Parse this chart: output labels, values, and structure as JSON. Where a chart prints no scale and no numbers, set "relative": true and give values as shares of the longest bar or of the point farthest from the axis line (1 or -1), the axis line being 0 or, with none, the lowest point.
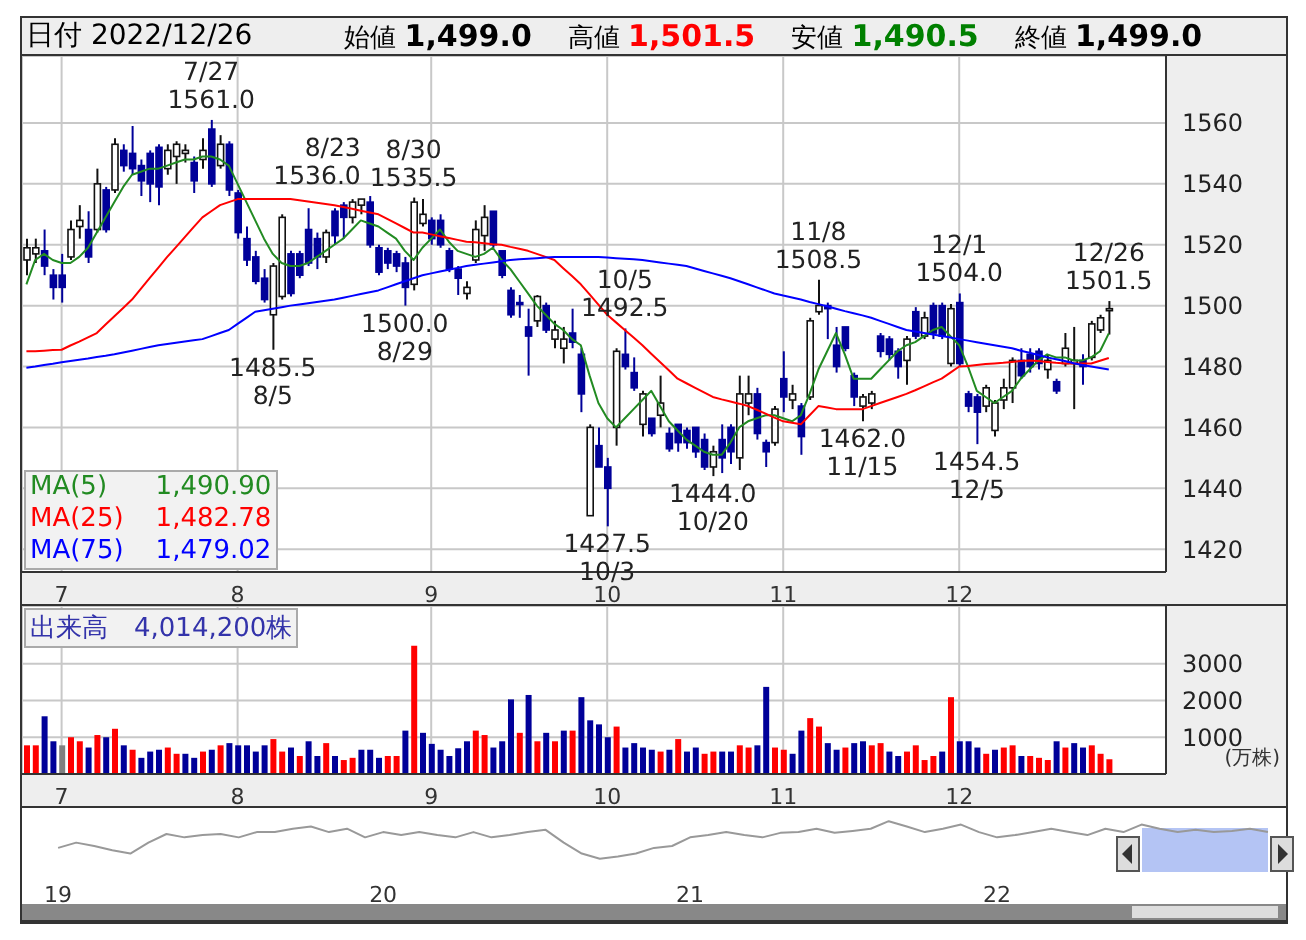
{
  "chart_data": [
    {
      "type": "candlestick",
      "title": "日付 2022/12/26",
      "categories": [
        null,
        null,
        null,
        null,
        "7",
        null,
        null,
        null,
        null,
        null,
        null,
        null,
        null,
        null,
        null,
        null,
        null,
        null,
        null,
        null,
        null,
        null,
        null,
        null,
        "8",
        null,
        null,
        null,
        null,
        null,
        null,
        null,
        null,
        null,
        null,
        null,
        null,
        null,
        null,
        null,
        null,
        null,
        null,
        null,
        null,
        null,
        "9",
        null,
        null,
        null,
        null,
        null,
        null,
        null,
        null,
        null,
        null,
        null,
        null,
        null,
        null,
        null,
        null,
        null,
        null,
        null,
        "10",
        null,
        null,
        null,
        null,
        null,
        null,
        null,
        null,
        null,
        null,
        null,
        null,
        null,
        null,
        null,
        null,
        null,
        null,
        null,
        "11",
        null,
        null,
        null,
        null,
        null,
        null,
        null,
        null,
        null,
        null,
        null,
        null,
        null,
        null,
        null,
        null,
        null,
        null,
        null,
        "12",
        null,
        null,
        null,
        null,
        null,
        null,
        null,
        null,
        null,
        null,
        null,
        null,
        null,
        null,
        null,
        null,
        null
      ],
      "ohlc": [
        [
          1515,
          1522,
          1510,
          1519
        ],
        [
          1517,
          1522,
          1514,
          1519
        ],
        [
          1518,
          1525,
          1510,
          1513
        ],
        [
          1510,
          1512,
          1502,
          1506
        ],
        [
          1510,
          1517,
          1501,
          1506
        ],
        [
          1516,
          1528,
          1515,
          1525
        ],
        [
          1526,
          1533,
          1522,
          1528
        ],
        [
          1525,
          1531,
          1514,
          1516
        ],
        [
          1525,
          1545,
          1524,
          1540
        ],
        [
          1538,
          1539,
          1524,
          1525
        ],
        [
          1538,
          1555,
          1537,
          1553
        ],
        [
          1551,
          1553,
          1544,
          1546
        ],
        [
          1550,
          1559,
          1543,
          1545
        ],
        [
          1546,
          1548,
          1536,
          1541
        ],
        [
          1550,
          1551,
          1534,
          1540
        ],
        [
          1552,
          1553,
          1533,
          1539
        ],
        [
          1545,
          1553,
          1543,
          1551
        ],
        [
          1549,
          1554,
          1540,
          1553
        ],
        [
          1550,
          1553,
          1547,
          1551
        ],
        [
          1547,
          1549,
          1537,
          1541
        ],
        [
          1548,
          1555,
          1545,
          1551
        ],
        [
          1558,
          1561,
          1539,
          1540
        ],
        [
          1546,
          1556,
          1545,
          1553
        ],
        [
          1553,
          1554,
          1536,
          1538
        ],
        [
          1537,
          1538,
          1522,
          1524
        ],
        [
          1522,
          1526,
          1513,
          1515
        ],
        [
          1516,
          1518,
          1507,
          1508
        ],
        [
          1509,
          1512,
          1501,
          1502
        ],
        [
          1497,
          1514,
          1485.5,
          1513
        ],
        [
          1503,
          1530,
          1502,
          1529
        ],
        [
          1517,
          1518,
          1503,
          1504
        ],
        [
          1517,
          1518,
          1509,
          1510
        ],
        [
          1525,
          1532,
          1513,
          1514
        ],
        [
          1522,
          1524,
          1512,
          1516
        ],
        [
          1516,
          1525,
          1514,
          1524
        ],
        [
          1531,
          1532,
          1520,
          1523
        ],
        [
          1533,
          1534,
          1522,
          1529
        ],
        [
          1529,
          1535,
          1527,
          1534
        ],
        [
          1533,
          1535,
          1530,
          1535
        ],
        [
          1534,
          1536,
          1519,
          1520
        ],
        [
          1519,
          1520,
          1510,
          1511
        ],
        [
          1518,
          1519,
          1512,
          1514
        ],
        [
          1517,
          1518,
          1511,
          1513
        ],
        [
          1514,
          1516,
          1500,
          1506
        ],
        [
          1507,
          1535.5,
          1505,
          1534
        ],
        [
          1527,
          1535,
          1526,
          1530
        ],
        [
          1528,
          1529,
          1520,
          1522
        ],
        [
          1528,
          1530,
          1519,
          1520
        ],
        [
          1518,
          1519,
          1511,
          1512
        ],
        [
          1512,
          1513,
          1503.5,
          1509
        ],
        [
          1504,
          1508,
          1502,
          1506
        ],
        [
          1515,
          1528,
          1514,
          1525
        ],
        [
          1523,
          1533,
          1518,
          1529
        ],
        [
          1531,
          1531,
          1519,
          1520
        ],
        [
          1518,
          1518,
          1509,
          1510
        ],
        [
          1505,
          1506,
          1496,
          1497
        ],
        [
          1501,
          1503.5,
          1496,
          1500.5
        ],
        [
          1493,
          1499,
          1477,
          1490
        ],
        [
          1495,
          1503.5,
          1493,
          1503
        ],
        [
          1500,
          1501,
          1491,
          1492
        ],
        [
          1489,
          1495,
          1486,
          1492
        ],
        [
          1486,
          1493,
          1481,
          1489
        ],
        [
          1491,
          1499,
          1486,
          1488
        ],
        [
          1484,
          1486,
          1465,
          1471
        ],
        [
          1431,
          1461,
          1431,
          1460
        ],
        [
          1454,
          1460,
          1447,
          1447
        ],
        [
          1447,
          1450,
          1427.5,
          1440
        ],
        [
          1460,
          1486,
          1454,
          1485
        ],
        [
          1484,
          1492.5,
          1479,
          1480
        ],
        [
          1478,
          1483,
          1472,
          1473
        ],
        [
          1461,
          1472,
          1457,
          1471
        ],
        [
          1463,
          1463,
          1457,
          1458
        ],
        [
          1464,
          1477,
          1460,
          1468
        ],
        [
          1458,
          1460,
          1452,
          1453
        ],
        [
          1461,
          1461,
          1452,
          1455
        ],
        [
          1459,
          1460,
          1453,
          1455
        ],
        [
          1460,
          1460,
          1450,
          1452
        ],
        [
          1456,
          1458,
          1446,
          1447
        ],
        [
          1447,
          1454,
          1444,
          1452
        ],
        [
          1456,
          1461,
          1445,
          1450
        ],
        [
          1460,
          1461,
          1448,
          1452
        ],
        [
          1450,
          1477,
          1446,
          1471
        ],
        [
          1468,
          1477,
          1464,
          1471
        ],
        [
          1471,
          1473,
          1456,
          1458
        ],
        [
          1455,
          1456,
          1447,
          1452
        ],
        [
          1455,
          1467,
          1454,
          1466
        ],
        [
          1476,
          1485,
          1465,
          1470
        ],
        [
          1469,
          1474,
          1466,
          1471
        ],
        [
          1467,
          1468,
          1451,
          1457
        ],
        [
          1470,
          1496,
          1469,
          1495
        ],
        [
          1498,
          1508.5,
          1497,
          1500
        ],
        [
          1500,
          1501,
          1489,
          1499
        ],
        [
          1487,
          1493,
          1478,
          1480
        ],
        [
          1493,
          1493,
          1485,
          1486
        ],
        [
          1477,
          1478,
          1467,
          1470
        ],
        [
          1467,
          1471,
          1462,
          1470
        ],
        [
          1468,
          1472,
          1466,
          1471
        ],
        [
          1490,
          1491,
          1483,
          1485
        ],
        [
          1489,
          1490,
          1482,
          1484
        ],
        [
          1485,
          1486,
          1476,
          1480
        ],
        [
          1482,
          1490,
          1474,
          1489
        ],
        [
          1498,
          1499.5,
          1489,
          1490
        ],
        [
          1490,
          1498,
          1489,
          1496
        ],
        [
          1500,
          1501,
          1489,
          1491
        ],
        [
          1500,
          1501,
          1489,
          1490
        ],
        [
          1481,
          1500.5,
          1480,
          1499
        ],
        [
          1501,
          1504,
          1480,
          1481
        ],
        [
          1471,
          1472,
          1465,
          1467
        ],
        [
          1470,
          1471,
          1454.5,
          1465
        ],
        [
          1467,
          1474,
          1465,
          1473
        ],
        [
          1459,
          1469,
          1457,
          1468
        ],
        [
          1469,
          1476,
          1466,
          1473
        ],
        [
          1473,
          1483,
          1468,
          1482
        ],
        [
          1482,
          1486,
          1476,
          1477
        ],
        [
          1484,
          1486,
          1478,
          1480
        ],
        [
          1485,
          1486,
          1479,
          1481
        ],
        [
          1479,
          1484,
          1476,
          1482
        ],
        [
          1475,
          1476,
          1471,
          1472
        ],
        [
          1481,
          1491,
          1480,
          1486
        ],
        [
          1481,
          1493,
          1466,
          1482
        ],
        [
          1482,
          1484,
          1474,
          1480
        ],
        [
          1483,
          1495,
          1482,
          1494
        ],
        [
          1492,
          1497,
          1491,
          1496
        ],
        [
          1499,
          1501.5,
          1490.5,
          1499
        ]
      ],
      "series": [
        {
          "name": "MA(5) 1,490.90",
          "type": "line",
          "color": "#228b22",
          "values": [
            1507,
            1515,
            1517,
            1515,
            1514,
            1514,
            1516,
            1519,
            1524,
            1529,
            1534,
            1539,
            1543,
            1544,
            1545,
            1545,
            1546,
            1547,
            1548,
            1548,
            1549,
            1549,
            1548,
            1546,
            1540,
            1534,
            1528,
            1522,
            1517,
            1514,
            1513,
            1513,
            1514,
            1516,
            1518,
            1520,
            1522,
            1525,
            1528,
            1527,
            1526,
            1524,
            1522,
            1518,
            1515,
            1519,
            1522,
            1525,
            1521,
            1518,
            1517,
            1516,
            1517,
            1519,
            1515,
            1512,
            1508,
            1504,
            1500,
            1497,
            1494,
            1492,
            1489,
            1487,
            1477,
            1468,
            1463,
            1460,
            1463,
            1466,
            1469,
            1472,
            1467,
            1462,
            1459,
            1456,
            1454,
            1452,
            1451,
            1451,
            1455,
            1460,
            1462,
            1463,
            1464,
            1464,
            1463,
            1462,
            1464,
            1471,
            1479,
            1485,
            1491,
            1484,
            1476,
            1476,
            1476,
            1479,
            1482,
            1485,
            1487,
            1488,
            1490,
            1492,
            1493,
            1490,
            1487,
            1480,
            1472,
            1470,
            1468,
            1470,
            1472,
            1476,
            1479,
            1482,
            1484,
            1483,
            1483,
            1482,
            1482,
            1483,
            1485,
            1490.9
          ]
        },
        {
          "name": "MA(25) 1,482.78",
          "type": "line",
          "color": "#ff0000",
          "values": [
            1485,
            1485,
            1485.2,
            1485.4,
            1485.5,
            1486.9,
            1488.2,
            1489.6,
            1491,
            1493.8,
            1496.5,
            1499.2,
            1502,
            1505.5,
            1509,
            1512.5,
            1516,
            1519.2,
            1522.5,
            1525.8,
            1529,
            1531,
            1533,
            1534,
            1535,
            1535,
            1535,
            1535,
            1535,
            1535,
            1535,
            1534.6,
            1534.2,
            1533.8,
            1533.4,
            1533,
            1532.4,
            1531.8,
            1531.2,
            1530.6,
            1530,
            1528.5,
            1527,
            1525.5,
            1524,
            1524,
            1523.4,
            1522.8,
            1522.2,
            1521.6,
            1521,
            1520.8,
            1520.5,
            1520.2,
            1520,
            1519.3,
            1518.7,
            1518,
            1517,
            1516,
            1515,
            1512.3,
            1509.7,
            1507,
            1503.7,
            1500.3,
            1497,
            1494.5,
            1492,
            1489.5,
            1487,
            1484.2,
            1481.5,
            1478.8,
            1476,
            1474.5,
            1473,
            1471.5,
            1470,
            1469.2,
            1468.5,
            1467.8,
            1467,
            1465.8,
            1464.5,
            1463.2,
            1462,
            1461.5,
            1461,
            1464,
            1467,
            1466.5,
            1466,
            1466,
            1466,
            1466,
            1467,
            1468,
            1469,
            1470,
            1471,
            1472.2,
            1473.5,
            1474.8,
            1476,
            1478,
            1480,
            1480.2,
            1480.5,
            1480.8,
            1481,
            1481.2,
            1481.5,
            1481.8,
            1482,
            1481.8,
            1481.5,
            1481.2,
            1481,
            1481,
            1481,
            1481,
            1481.9,
            1482.8
          ]
        },
        {
          "name": "MA(75) 1,479.02",
          "type": "line",
          "color": "#0000ff",
          "values": [
            1479.6,
            1480,
            1480.5,
            1480.9,
            1481.4,
            1481.8,
            1482.2,
            1482.6,
            1483.1,
            1483.5,
            1484,
            1484.6,
            1485.2,
            1485.8,
            1486.4,
            1487,
            1487.4,
            1487.8,
            1488.2,
            1488.6,
            1489,
            1490,
            1491,
            1492,
            1494,
            1496,
            1498,
            1498.5,
            1499,
            1499.5,
            1500,
            1500.4,
            1500.8,
            1501.2,
            1501.6,
            1502,
            1502.6,
            1503.2,
            1503.8,
            1504.4,
            1505,
            1506,
            1507,
            1508,
            1509,
            1510,
            1510.6,
            1511.2,
            1511.8,
            1512.4,
            1513,
            1513.4,
            1513.8,
            1514.2,
            1514.6,
            1515,
            1515.2,
            1515.4,
            1515.6,
            1515.8,
            1516,
            1516,
            1516,
            1516,
            1516,
            1516,
            1515.8,
            1515.6,
            1515.4,
            1515.2,
            1515,
            1514.6,
            1514.2,
            1513.8,
            1513.4,
            1513,
            1512.2,
            1511.4,
            1510.6,
            1509.8,
            1509,
            1508,
            1507,
            1506,
            1505,
            1504,
            1503.3,
            1502.7,
            1502,
            1501.2,
            1500.5,
            1499.8,
            1499,
            1498.2,
            1497.5,
            1496.8,
            1496,
            1495,
            1494,
            1493,
            1492,
            1491.5,
            1491,
            1490.5,
            1490,
            1489.5,
            1489,
            1488.5,
            1488,
            1487.5,
            1487,
            1486.5,
            1486,
            1485.2,
            1484.5,
            1483.8,
            1483,
            1482.4,
            1481.8,
            1481.1,
            1480.5,
            1480,
            1479.5,
            1479
          ]
        }
      ],
      "ylim": [
        1412.5,
        1582
      ],
      "yticks": [
        1420,
        1440,
        1460,
        1480,
        1500,
        1520,
        1540,
        1560
      ],
      "grid": true,
      "annotations": [
        "始値 1,499.0",
        "高値 1,501.5",
        "安値 1,490.5",
        "終値 1,499.0",
        {
          "text": "7/27\n1561.0",
          "y": 1561
        },
        {
          "text": "1485.5\n8/5",
          "y": 1485.5
        },
        {
          "text": "8/23\n1536.0",
          "y": 1536
        },
        {
          "text": "8/30\n1535.5",
          "y": 1535.5
        },
        {
          "text": "1500.0\n8/29",
          "y": 1500
        },
        {
          "text": "1427.5\n10/3",
          "y": 1427.5
        },
        {
          "text": "10/5\n1492.5",
          "y": 1492.5
        },
        {
          "text": "1444.0\n10/20",
          "y": 1444
        },
        {
          "text": "11/8\n1508.5",
          "y": 1508.5
        },
        {
          "text": "1462.0\n11/15",
          "y": 1462
        },
        {
          "text": "12/1\n1504.0",
          "y": 1504
        },
        {
          "text": "1454.5\n12/5",
          "y": 1454.5
        },
        {
          "text": "12/26\n1501.5",
          "y": 1501.5
        }
      ]
    },
    {
      "type": "bar",
      "title": "出来高　4,014,200株",
      "ylabel": "(万株)",
      "categories": [
        null,
        null,
        null,
        null,
        "7",
        null,
        null,
        null,
        null,
        null,
        null,
        null,
        null,
        null,
        null,
        null,
        null,
        null,
        null,
        null,
        null,
        null,
        null,
        null,
        "8",
        null,
        null,
        null,
        null,
        null,
        null,
        null,
        null,
        null,
        null,
        null,
        null,
        null,
        null,
        null,
        null,
        null,
        null,
        null,
        null,
        null,
        "9",
        null,
        null,
        null,
        null,
        null,
        null,
        null,
        null,
        null,
        null,
        null,
        null,
        null,
        null,
        null,
        null,
        null,
        null,
        null,
        "10",
        null,
        null,
        null,
        null,
        null,
        null,
        null,
        null,
        null,
        null,
        null,
        null,
        null,
        null,
        null,
        null,
        null,
        null,
        null,
        "11",
        null,
        null,
        null,
        null,
        null,
        null,
        null,
        null,
        null,
        null,
        null,
        null,
        null,
        null,
        null,
        null,
        null,
        null,
        null,
        "12",
        null,
        null,
        null,
        null,
        null,
        null,
        null,
        null,
        null,
        null,
        null,
        null,
        null,
        null,
        null,
        null,
        null
      ],
      "values": [
        780,
        780,
        1570,
        890,
        780,
        1000,
        890,
        720,
        1060,
        1000,
        1230,
        780,
        660,
        440,
        610,
        660,
        720,
        550,
        550,
        440,
        610,
        660,
        780,
        840,
        780,
        780,
        610,
        780,
        950,
        610,
        720,
        490,
        890,
        490,
        840,
        490,
        380,
        440,
        660,
        660,
        440,
        490,
        490,
        1180,
        3490,
        1120,
        820,
        660,
        490,
        700,
        890,
        1180,
        1060,
        720,
        890,
        2030,
        1120,
        2150,
        890,
        1120,
        890,
        1180,
        1180,
        2090,
        1460,
        1350,
        1000,
        1290,
        720,
        840,
        720,
        660,
        610,
        660,
        950,
        610,
        720,
        550,
        610,
        610,
        610,
        780,
        720,
        780,
        2370,
        720,
        660,
        550,
        1180,
        1520,
        1290,
        840,
        660,
        720,
        840,
        890,
        780,
        840,
        610,
        490,
        610,
        780,
        380,
        490,
        610,
        2090,
        890,
        890,
        720,
        550,
        660,
        720,
        780,
        490,
        490,
        440,
        380,
        890,
        720,
        840,
        720,
        780,
        550,
        401
      ],
      "colors": [
        "#ff0000",
        "#ff0000",
        "#000099",
        "#000099",
        "#808080",
        "#ff0000",
        "#ff0000",
        "#000099",
        "#ff0000",
        "#000099",
        "#ff0000",
        "#000099",
        "#ff0000",
        "#000099",
        "#000099",
        "#000099",
        "#ff0000",
        "#ff0000",
        "#000099",
        "#000099",
        "#ff0000",
        "#000099",
        "#ff0000",
        "#000099",
        "#000099",
        "#000099",
        "#000099",
        "#000099",
        "#ff0000",
        "#ff0000",
        "#000099",
        "#ff0000",
        "#000099",
        "#000099",
        "#ff0000",
        "#000099",
        "#ff0000",
        "#ff0000",
        "#000099",
        "#000099",
        "#000099",
        "#ff0000",
        "#ff0000",
        "#000099",
        "#ff0000",
        "#000099",
        "#000099",
        "#000099",
        "#000099",
        "#000099",
        "#000099",
        "#ff0000",
        "#ff0000",
        "#000099",
        "#000099",
        "#000099",
        "#ff0000",
        "#000099",
        "#ff0000",
        "#000099",
        "#ff0000",
        "#000099",
        "#ff0000",
        "#000099",
        "#000099",
        "#000099",
        "#000099",
        "#ff0000",
        "#000099",
        "#000099",
        "#000099",
        "#000099",
        "#ff0000",
        "#000099",
        "#ff0000",
        "#000099",
        "#000099",
        "#ff0000",
        "#ff0000",
        "#000099",
        "#000099",
        "#ff0000",
        "#ff0000",
        "#000099",
        "#000099",
        "#ff0000",
        "#ff0000",
        "#000099",
        "#000099",
        "#ff0000",
        "#ff0000",
        "#000099",
        "#000099",
        "#ff0000",
        "#000099",
        "#000099",
        "#ff0000",
        "#ff0000",
        "#000099",
        "#000099",
        "#ff0000",
        "#ff0000",
        "#ff0000",
        "#ff0000",
        "#000099",
        "#ff0000",
        "#000099",
        "#000099",
        "#000099",
        "#ff0000",
        "#000099",
        "#ff0000",
        "#ff0000",
        "#000099",
        "#ff0000",
        "#ff0000",
        "#ff0000",
        "#000099",
        "#ff0000",
        "#000099",
        "#000099",
        "#ff0000",
        "#ff0000",
        "#ff0000"
      ],
      "ylim": [
        0,
        4570
      ],
      "yticks": [
        1000,
        2000,
        3000
      ],
      "grid": true
    },
    {
      "type": "line",
      "relative": true,
      "tick_labels": "x",
      "categories": [
        "19",
        null,
        null,
        null,
        null,
        null,
        null,
        null,
        null,
        null,
        null,
        null,
        null,
        null,
        null,
        null,
        null,
        null,
        "20",
        null,
        null,
        null,
        null,
        null,
        null,
        null,
        null,
        null,
        null,
        null,
        null,
        null,
        null,
        null,
        null,
        "21",
        null,
        null,
        null,
        null,
        null,
        null,
        null,
        null,
        null,
        null,
        null,
        null,
        null,
        null,
        null,
        null,
        "22",
        null,
        null,
        null,
        null,
        null,
        null,
        null,
        null,
        null,
        null,
        null,
        null,
        null,
        null,
        null
      ],
      "series": [
        {
          "color": "#999999",
          "values": [
            0.29,
            0.43,
            0.34,
            0.23,
            0.14,
            0.43,
            0.66,
            0.57,
            0.63,
            0.66,
            0.57,
            0.71,
            0.71,
            0.8,
            0.86,
            0.71,
            0.8,
            0.57,
            0.71,
            0.63,
            0.71,
            0.63,
            0.57,
            0.71,
            0.57,
            0.63,
            0.71,
            0.77,
            0.43,
            0.14,
            0,
            0.06,
            0.14,
            0.29,
            0.34,
            0.57,
            0.63,
            0.71,
            0.63,
            0.57,
            0.69,
            0.71,
            0.8,
            0.69,
            0.74,
            0.8,
            1,
            0.86,
            0.71,
            0.8,
            0.91,
            0.71,
            0.57,
            0.63,
            0.71,
            0.8,
            0.71,
            0.63,
            0.8,
            0.71,
            0.91,
            0.8,
            0.71,
            0.77,
            0.71,
            0.74,
            0.8,
            0.71
          ]
        }
      ]
    }
  ]
}
